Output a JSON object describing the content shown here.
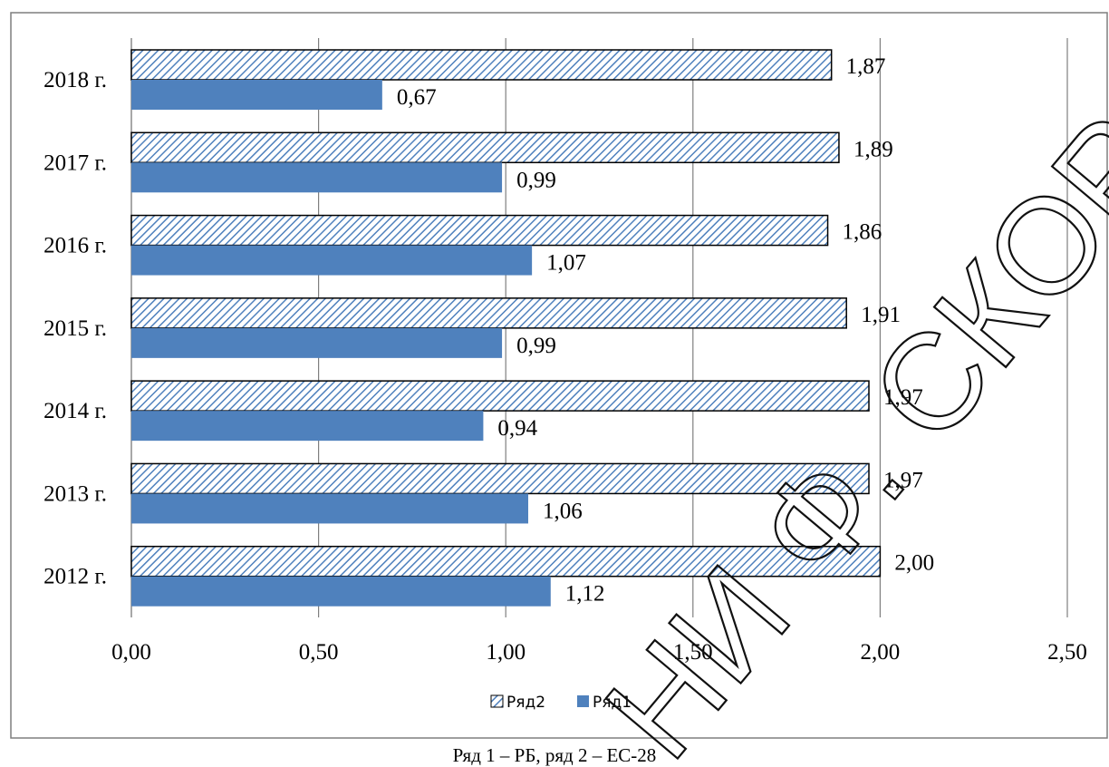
{
  "chart_data": {
    "type": "bar",
    "orientation": "horizontal",
    "categories": [
      "2012 г.",
      "2013 г.",
      "2014 г.",
      "2015 г.",
      "2016 г.",
      "2017 г.",
      "2018 г."
    ],
    "series": [
      {
        "name": "Ряд2",
        "values": [
          2.0,
          1.97,
          1.97,
          1.91,
          1.86,
          1.89,
          1.87
        ],
        "labels": [
          "2,00",
          "1,97",
          "1,97",
          "1,91",
          "1,86",
          "1,89",
          "1,87"
        ],
        "pattern": "diagonal-hatch",
        "color": "#4f81bd"
      },
      {
        "name": "Ряд1",
        "values": [
          1.12,
          1.06,
          0.94,
          0.99,
          1.07,
          0.99,
          0.67
        ],
        "labels": [
          "1,12",
          "1,06",
          "0,94",
          "0,99",
          "1,07",
          "0,99",
          "0,67"
        ],
        "pattern": "solid",
        "color": "#4f81bd"
      }
    ],
    "xlim": [
      0,
      2.5
    ],
    "xticks": [
      0,
      0.5,
      1.0,
      1.5,
      2.0,
      2.5
    ],
    "xtick_labels": [
      "0,00",
      "0,50",
      "1,00",
      "1,50",
      "2,00",
      "2,50"
    ],
    "grid": "vertical",
    "legend_position": "bottom"
  },
  "caption": "Ряд 1 – РБ, ряд 2 – ЕС-28",
  "watermark_text": "НИ Ф. СКОРИН",
  "colors": {
    "bar": "#4f81bd",
    "hatch": "#4f81bd",
    "grid": "#7f7f7f",
    "border": "#7f7f7f"
  }
}
